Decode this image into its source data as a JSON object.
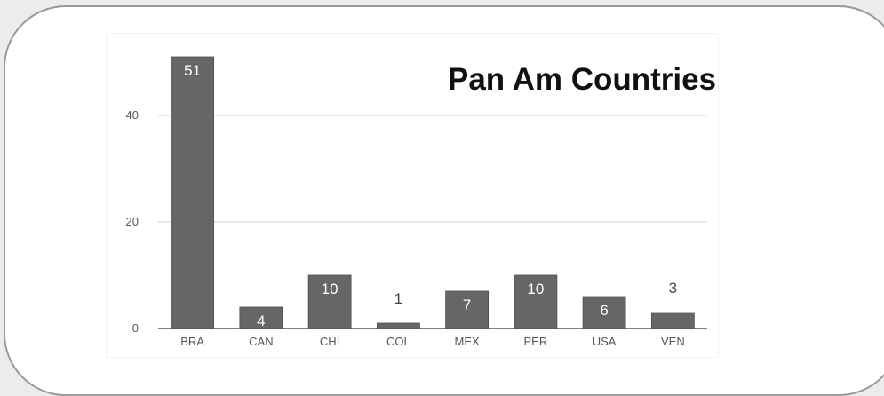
{
  "chart_data": {
    "type": "bar",
    "title": "Pan Am Countries",
    "categories": [
      "BRA",
      "CAN",
      "CHI",
      "COL",
      "MEX",
      "PER",
      "USA",
      "VEN"
    ],
    "values": [
      51,
      4,
      10,
      1,
      7,
      10,
      6,
      3
    ],
    "data_labels": [
      "51",
      "4",
      "10",
      "1",
      "7",
      "10",
      "6",
      "3"
    ],
    "y_ticks": [
      "0",
      "20",
      "40"
    ],
    "ylim": [
      0,
      52
    ],
    "xlabel": "",
    "ylabel": "",
    "grid": true,
    "legend": false,
    "colors": {
      "bar": "#666666",
      "bar_edge": "#4e4e4e",
      "label_inside": "#ffffff",
      "label_outside": "#444444",
      "grid": "#d6d6d6",
      "baseline": "#555555"
    }
  }
}
